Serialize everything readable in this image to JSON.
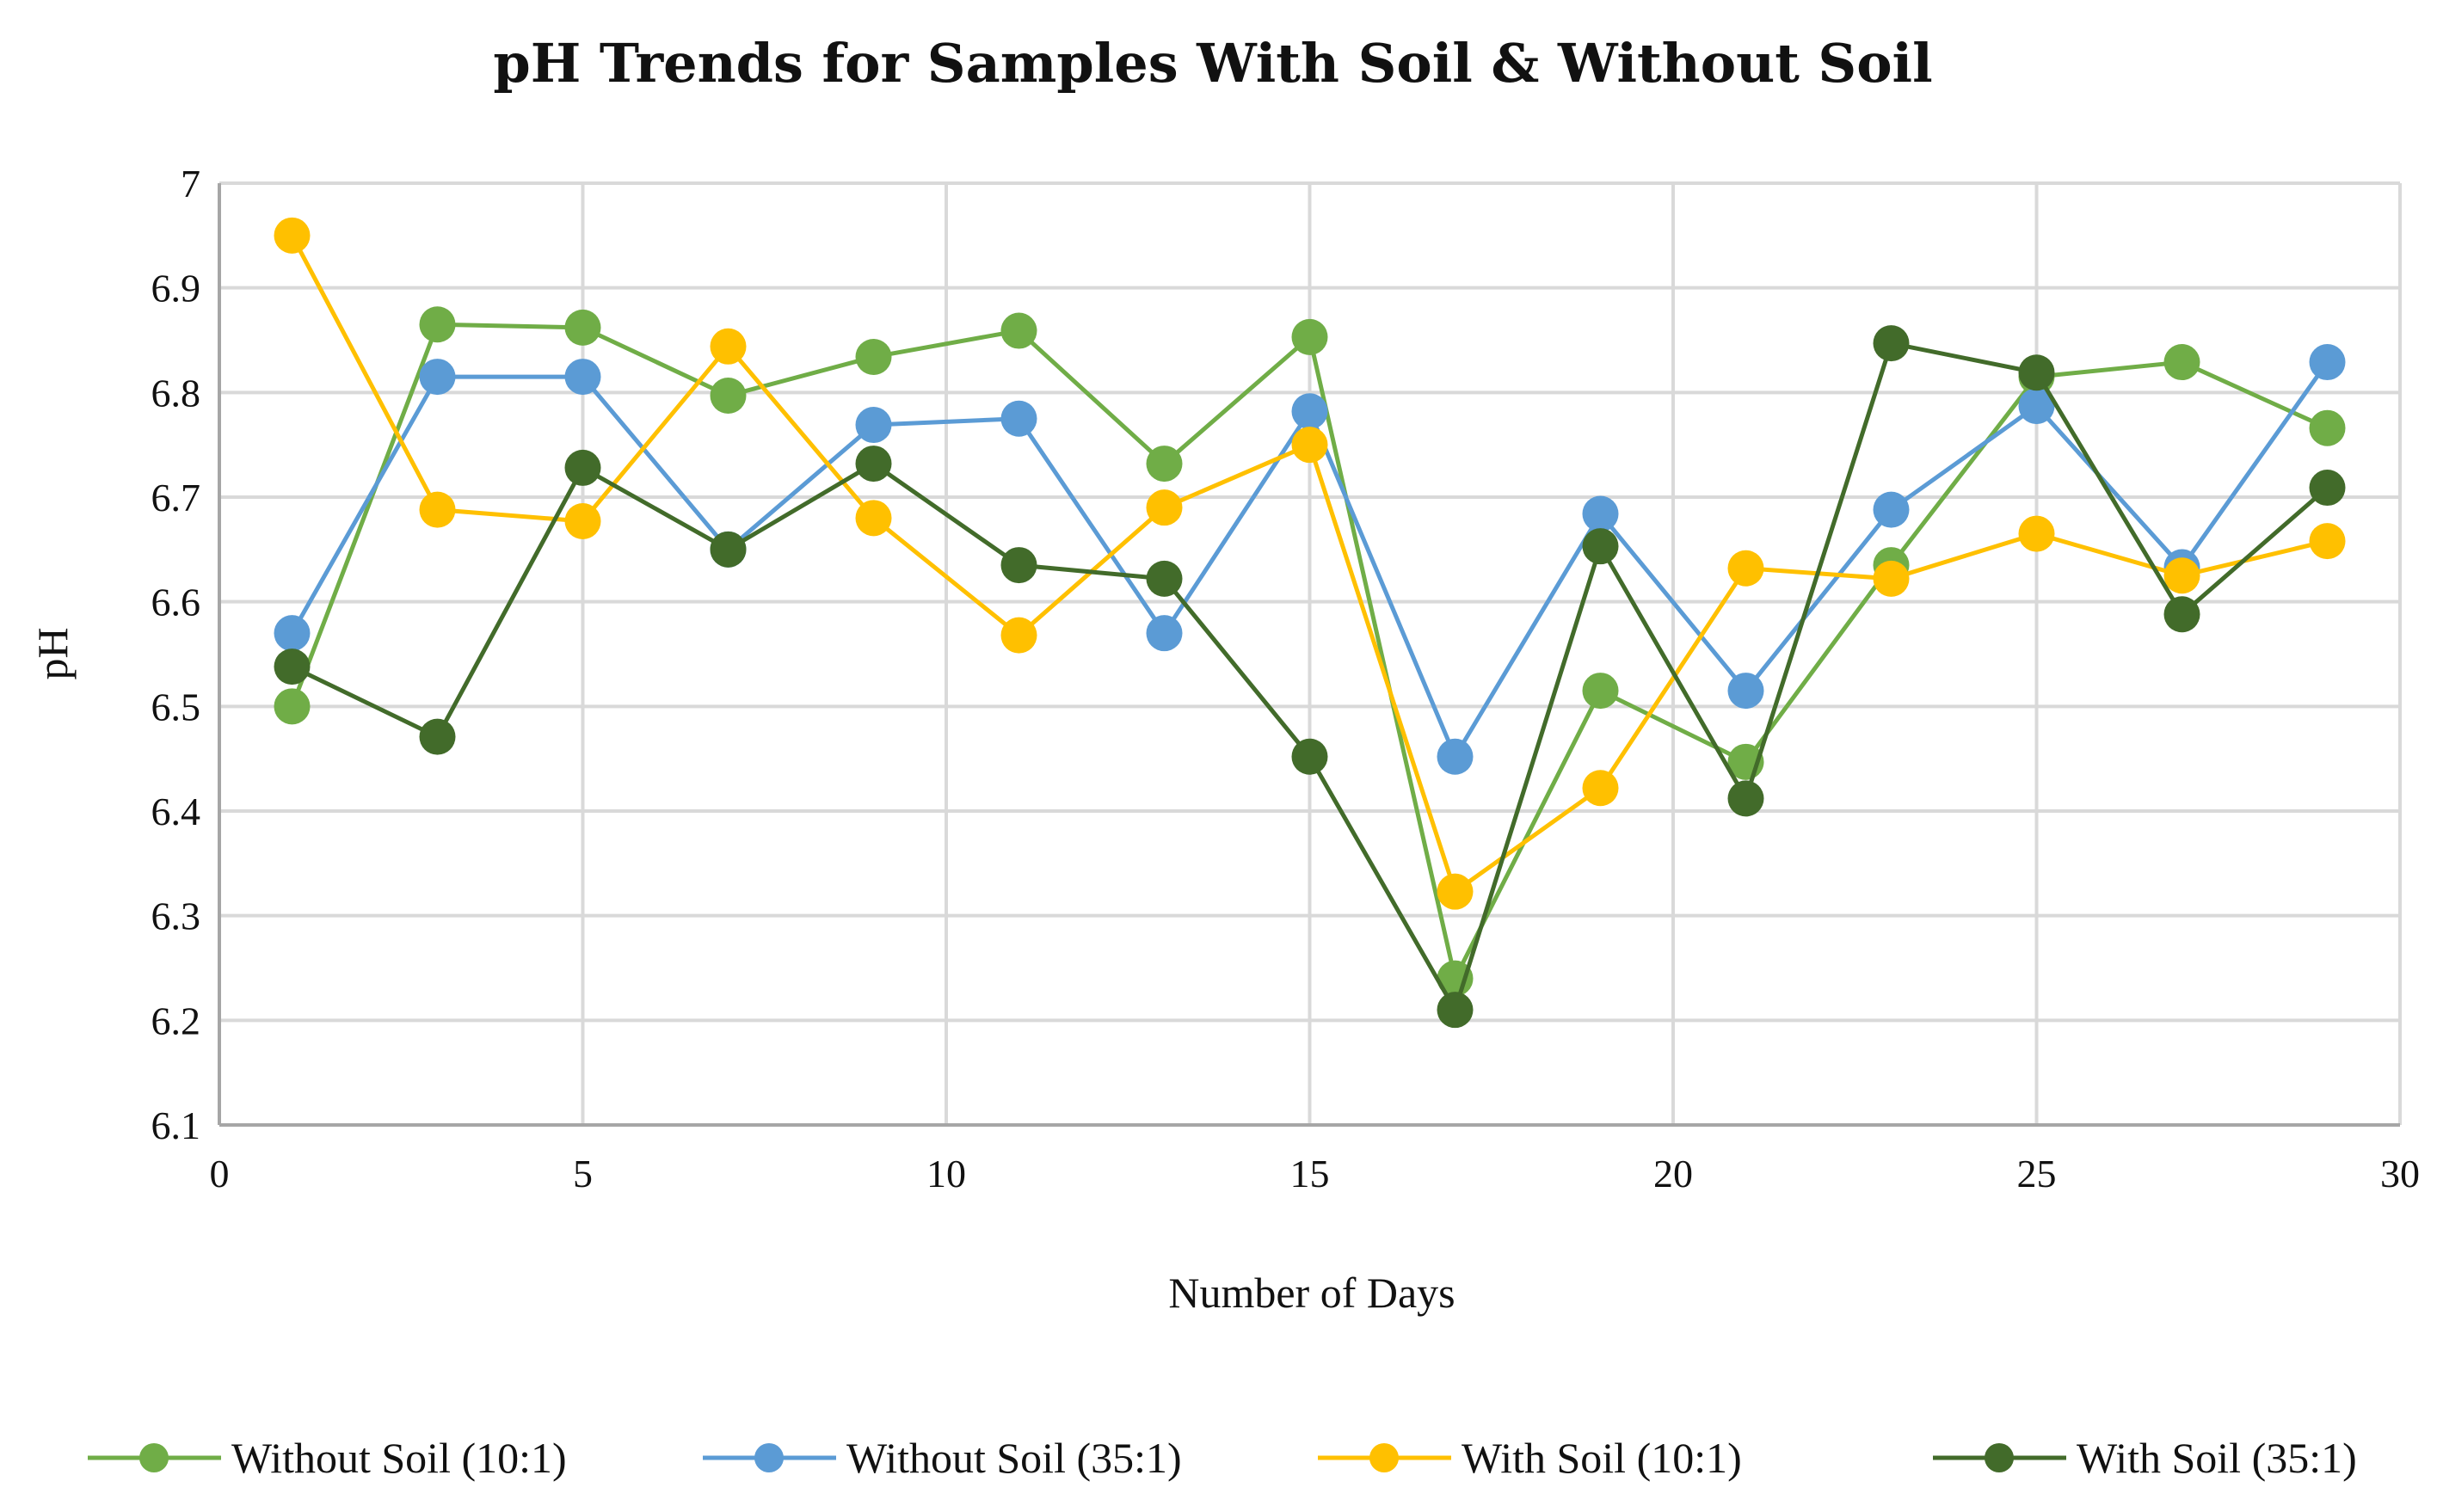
{
  "chart_data": {
    "type": "line",
    "title": "pH Trends for Samples With Soil & Without Soil",
    "xlabel": "Number of Days",
    "ylabel": "pH",
    "xlim": [
      0,
      30
    ],
    "ylim": [
      6.1,
      7.0
    ],
    "x_ticks": [
      "0",
      "5",
      "10",
      "15",
      "20",
      "25",
      "30"
    ],
    "x_tick_values": [
      0,
      5,
      10,
      15,
      20,
      25,
      30
    ],
    "y_ticks": [
      "6.1",
      "6.2",
      "6.3",
      "6.4",
      "6.5",
      "6.6",
      "6.7",
      "6.8",
      "6.9",
      "7"
    ],
    "y_tick_values": [
      6.1,
      6.2,
      6.3,
      6.4,
      6.5,
      6.6,
      6.7,
      6.8,
      6.9,
      7.0
    ],
    "grid": true,
    "legend_position": "bottom",
    "x": [
      1,
      3,
      5,
      7,
      9,
      11,
      13,
      15,
      17,
      19,
      21,
      23,
      25,
      27,
      29
    ],
    "series": [
      {
        "name": "Without Soil (10:1)",
        "color": "#70ad47",
        "values": [
          6.5,
          6.865,
          6.862,
          6.797,
          6.834,
          6.859,
          6.732,
          6.853,
          6.24,
          6.515,
          6.447,
          6.635,
          6.815,
          6.829,
          6.766
        ]
      },
      {
        "name": "Without Soil (35:1)",
        "color": "#5b9bd5",
        "values": [
          6.57,
          6.815,
          6.815,
          6.65,
          6.769,
          6.775,
          6.57,
          6.782,
          6.452,
          6.684,
          6.515,
          6.688,
          6.787,
          6.633,
          6.829
        ]
      },
      {
        "name": "With Soil (10:1)",
        "color": "#ffc000",
        "values": [
          6.95,
          6.688,
          6.677,
          6.844,
          6.68,
          6.568,
          6.69,
          6.75,
          6.323,
          6.422,
          6.632,
          6.622,
          6.665,
          6.625,
          6.658
        ]
      },
      {
        "name": "With Soil (35:1)",
        "color": "#426b2a",
        "values": [
          6.538,
          6.471,
          6.728,
          6.65,
          6.732,
          6.635,
          6.622,
          6.452,
          6.21,
          6.653,
          6.412,
          6.847,
          6.819,
          6.588,
          6.709
        ]
      }
    ]
  }
}
